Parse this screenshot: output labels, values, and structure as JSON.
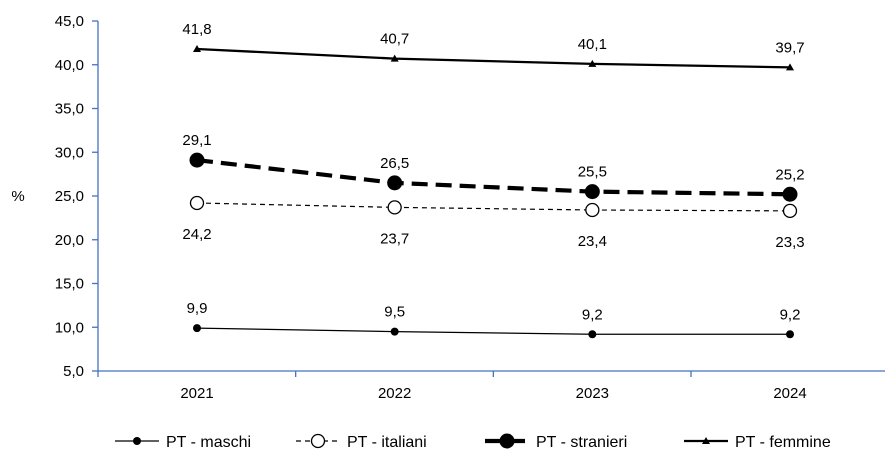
{
  "chart_data": {
    "type": "line",
    "categories": [
      "2021",
      "2022",
      "2023",
      "2024"
    ],
    "ylabel": "%",
    "ylim": [
      5.0,
      45.0
    ],
    "yticks": [
      "5,0",
      "10,0",
      "15,0",
      "20,0",
      "25,0",
      "30,0",
      "35,0",
      "40,0",
      "45,0"
    ],
    "grid": false,
    "legend_position": "bottom",
    "axis_color": "#4472C4",
    "series": [
      {
        "name": "PT - maschi",
        "values": [
          9.9,
          9.5,
          9.2,
          9.2
        ],
        "labels": [
          "9,9",
          "9,5",
          "9,2",
          "9,2"
        ],
        "style": "solid-thin",
        "marker": "small-filled-circle",
        "color": "#000000"
      },
      {
        "name": "PT - italiani",
        "values": [
          24.2,
          23.7,
          23.4,
          23.3
        ],
        "labels": [
          "24,2",
          "23,7",
          "23,4",
          "23,3"
        ],
        "style": "dashed-thin",
        "marker": "open-circle",
        "color": "#000000"
      },
      {
        "name": "PT - stranieri",
        "values": [
          29.1,
          26.5,
          25.5,
          25.2
        ],
        "labels": [
          "29,1",
          "26,5",
          "25,5",
          "25,2"
        ],
        "style": "dashed-thick",
        "marker": "large-filled-circle",
        "color": "#000000"
      },
      {
        "name": "PT - femmine",
        "values": [
          41.8,
          40.7,
          40.1,
          39.7
        ],
        "labels": [
          "41,8",
          "40,7",
          "40,1",
          "39,7"
        ],
        "style": "solid-medium",
        "marker": "filled-triangle",
        "color": "#000000"
      }
    ]
  }
}
